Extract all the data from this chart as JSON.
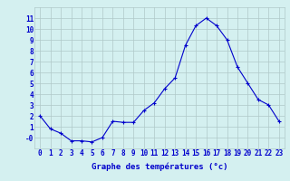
{
  "x": [
    0,
    1,
    2,
    3,
    4,
    5,
    6,
    7,
    8,
    9,
    10,
    11,
    12,
    13,
    14,
    15,
    16,
    17,
    18,
    19,
    20,
    21,
    22,
    23
  ],
  "y": [
    2.0,
    0.8,
    0.4,
    -0.3,
    -0.3,
    -0.4,
    0.0,
    1.5,
    1.4,
    1.4,
    2.5,
    3.2,
    4.5,
    5.5,
    8.5,
    10.3,
    11.0,
    10.3,
    9.0,
    6.5,
    5.0,
    3.5,
    3.0,
    1.5
  ],
  "xlabel": "Graphe des températures (°c)",
  "ylim": [
    -1,
    12
  ],
  "yticks": [
    0,
    1,
    2,
    3,
    4,
    5,
    6,
    7,
    8,
    9,
    10,
    11
  ],
  "ytick_labels": [
    "-0",
    "1",
    "2",
    "3",
    "4",
    "5",
    "6",
    "7",
    "8",
    "9",
    "10",
    "11"
  ],
  "xticks": [
    0,
    1,
    2,
    3,
    4,
    5,
    6,
    7,
    8,
    9,
    10,
    11,
    12,
    13,
    14,
    15,
    16,
    17,
    18,
    19,
    20,
    21,
    22,
    23
  ],
  "line_color": "#0000cc",
  "marker": "+",
  "bg_color": "#d4f0f0",
  "grid_color": "#b0c8c8",
  "tick_label_color": "#0000cc",
  "axis_label_color": "#0000cc",
  "font_size_ticks": 5.5,
  "font_size_xlabel": 6.5
}
